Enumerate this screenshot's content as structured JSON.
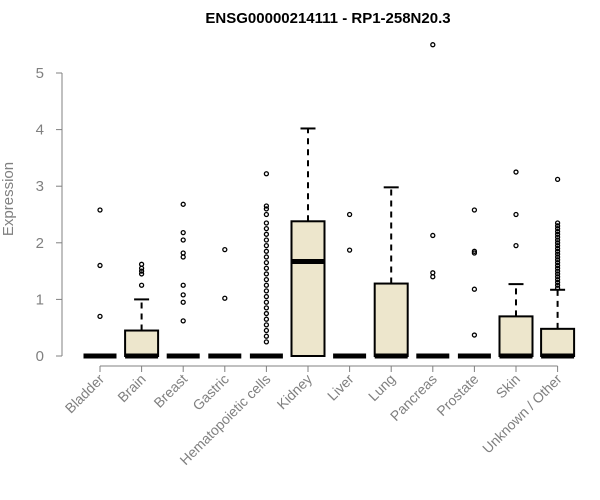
{
  "chart_data": {
    "type": "boxplot",
    "title": "ENSG00000214111 - RP1-258N20.3",
    "ylabel": "Expression",
    "xlabel": "",
    "ylim": [
      0,
      5.5
    ],
    "yticks": [
      0,
      1,
      2,
      3,
      4,
      5
    ],
    "grid": false,
    "box_fill": "#ede6cc",
    "box_stroke": "#000000",
    "categories": [
      "Bladder",
      "Brain",
      "Breast",
      "Gastric",
      "Hematopoietic cells",
      "Kidney",
      "Liver",
      "Lung",
      "Pancreas",
      "Prostate",
      "Skin",
      "Unknown / Other"
    ],
    "boxes": [
      {
        "q1": 0,
        "median": 0,
        "q3": 0,
        "whisker_low": 0,
        "whisker_high": 0,
        "outliers": [
          0.7,
          1.6,
          2.58
        ]
      },
      {
        "q1": 0,
        "median": 0,
        "q3": 0.45,
        "whisker_low": 0,
        "whisker_high": 1.0,
        "outliers": [
          1.25,
          1.45,
          1.5,
          1.55,
          1.62
        ]
      },
      {
        "q1": 0,
        "median": 0,
        "q3": 0,
        "whisker_low": 0,
        "whisker_high": 0,
        "outliers": [
          0.62,
          0.95,
          1.08,
          1.25,
          1.75,
          1.82,
          2.05,
          2.18,
          2.68
        ]
      },
      {
        "q1": 0,
        "median": 0,
        "q3": 0,
        "whisker_low": 0,
        "whisker_high": 0,
        "outliers": [
          1.02,
          1.88
        ]
      },
      {
        "q1": 0,
        "median": 0,
        "q3": 0,
        "whisker_low": 0,
        "whisker_high": 0,
        "outliers": [
          0.25,
          0.35,
          0.45,
          0.55,
          0.65,
          0.75,
          0.85,
          0.95,
          1.05,
          1.15,
          1.25,
          1.35,
          1.45,
          1.55,
          1.65,
          1.75,
          1.85,
          1.95,
          2.05,
          2.15,
          2.25,
          2.35,
          2.5,
          2.6,
          2.65,
          3.22
        ]
      },
      {
        "q1": 0,
        "median": 1.67,
        "q3": 2.38,
        "whisker_low": 0,
        "whisker_high": 4.02,
        "outliers": []
      },
      {
        "q1": 0,
        "median": 0,
        "q3": 0,
        "whisker_low": 0,
        "whisker_high": 0,
        "outliers": [
          1.87,
          2.5
        ]
      },
      {
        "q1": 0,
        "median": 0,
        "q3": 1.28,
        "whisker_low": 0,
        "whisker_high": 2.98,
        "outliers": []
      },
      {
        "q1": 0,
        "median": 0,
        "q3": 0,
        "whisker_low": 0,
        "whisker_high": 0,
        "outliers": [
          1.4,
          1.47,
          2.13,
          5.5
        ]
      },
      {
        "q1": 0,
        "median": 0,
        "q3": 0,
        "whisker_low": 0,
        "whisker_high": 0,
        "outliers": [
          0.37,
          1.18,
          1.82,
          1.85,
          2.58
        ]
      },
      {
        "q1": 0,
        "median": 0,
        "q3": 0.7,
        "whisker_low": 0,
        "whisker_high": 1.27,
        "outliers": [
          1.95,
          2.5,
          3.25
        ]
      },
      {
        "q1": 0,
        "median": 0,
        "q3": 0.48,
        "whisker_low": 0,
        "whisker_high": 1.17,
        "outliers": [
          1.2,
          1.25,
          1.3,
          1.35,
          1.4,
          1.45,
          1.5,
          1.55,
          1.6,
          1.65,
          1.7,
          1.75,
          1.8,
          1.85,
          1.9,
          1.95,
          2.0,
          2.05,
          2.1,
          2.15,
          2.2,
          2.25,
          2.3,
          2.35,
          3.12
        ]
      }
    ]
  }
}
